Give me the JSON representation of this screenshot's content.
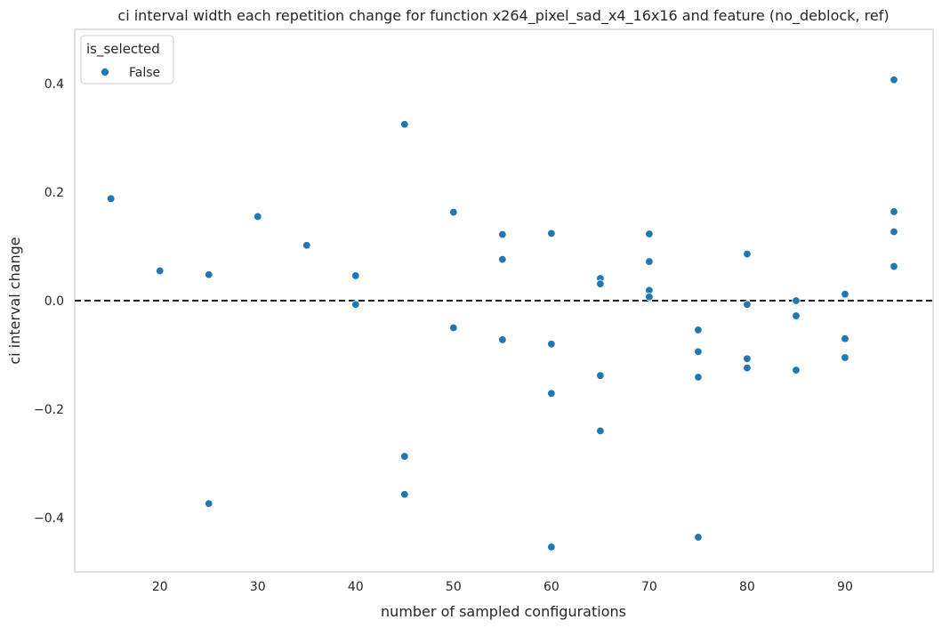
{
  "chart_data": {
    "type": "scatter",
    "title": "ci interval width each repetition change for function x264_pixel_sad_x4_16x16 and feature (no_deblock, ref)",
    "xlabel": "number of sampled configurations",
    "ylabel": "ci interval change",
    "xlim": [
      11.3,
      99.0
    ],
    "ylim": [
      -0.5,
      0.5
    ],
    "xticks": [
      20,
      30,
      40,
      50,
      60,
      70,
      80,
      90
    ],
    "yticks": [
      0.4,
      0.2,
      0.0,
      -0.2,
      -0.4
    ],
    "ytick_labels": [
      "0.4",
      "0.2",
      "0.0",
      "−0.2",
      "−0.4"
    ],
    "grid": false,
    "reference_line": {
      "y": 0.0,
      "style": "dashed",
      "color": "#000000"
    },
    "legend": {
      "title": "is_selected",
      "placement": "top-left",
      "entries": [
        {
          "label": "False",
          "color": "#1f77b4"
        }
      ]
    },
    "series": [
      {
        "name": "False",
        "color": "#1f77b4",
        "points": [
          [
            15,
            0.188
          ],
          [
            20,
            0.055
          ],
          [
            25,
            0.048
          ],
          [
            25,
            -0.374
          ],
          [
            30,
            0.155
          ],
          [
            35,
            0.102
          ],
          [
            40,
            0.046
          ],
          [
            40,
            -0.007
          ],
          [
            45,
            0.325
          ],
          [
            45,
            -0.287
          ],
          [
            45,
            -0.357
          ],
          [
            50,
            0.163
          ],
          [
            50,
            -0.05
          ],
          [
            55,
            0.122
          ],
          [
            55,
            0.076
          ],
          [
            55,
            -0.072
          ],
          [
            60,
            0.124
          ],
          [
            60,
            -0.08
          ],
          [
            60,
            -0.171
          ],
          [
            60,
            -0.454
          ],
          [
            65,
            0.041
          ],
          [
            65,
            0.031
          ],
          [
            65,
            -0.138
          ],
          [
            65,
            -0.24
          ],
          [
            70,
            0.123
          ],
          [
            70,
            0.072
          ],
          [
            70,
            0.019
          ],
          [
            70,
            0.007
          ],
          [
            75,
            -0.054
          ],
          [
            75,
            -0.094
          ],
          [
            75,
            -0.141
          ],
          [
            75,
            -0.436
          ],
          [
            80,
            0.086
          ],
          [
            80,
            -0.007
          ],
          [
            80,
            -0.107
          ],
          [
            80,
            -0.124
          ],
          [
            85,
            0.0
          ],
          [
            85,
            -0.028
          ],
          [
            85,
            -0.128
          ],
          [
            90,
            0.012
          ],
          [
            90,
            -0.07
          ],
          [
            90,
            -0.105
          ],
          [
            95,
            0.407
          ],
          [
            95,
            0.164
          ],
          [
            95,
            0.127
          ],
          [
            95,
            0.063
          ]
        ]
      }
    ]
  }
}
